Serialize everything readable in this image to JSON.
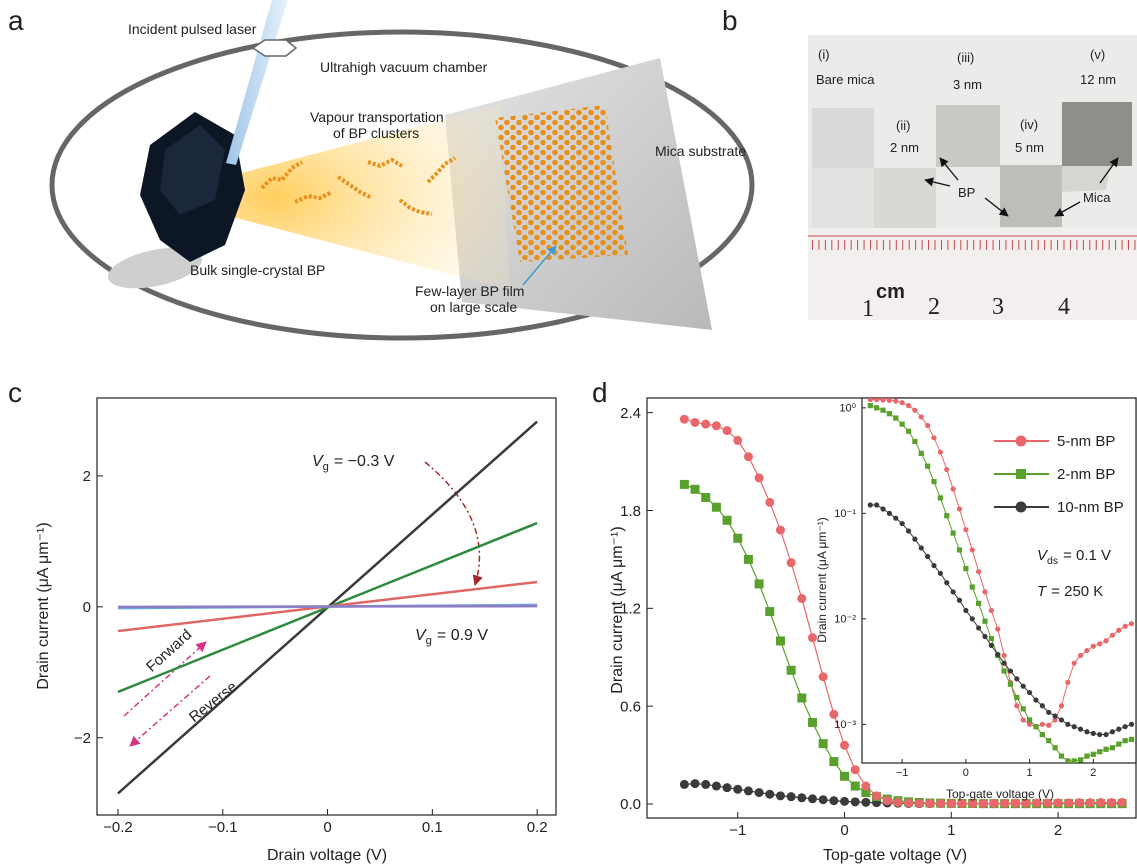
{
  "figure": {
    "panel_labels": [
      "a",
      "b",
      "c",
      "d"
    ],
    "diagram": {
      "laser": "Incident pulsed laser",
      "chamber": "Ultrahigh vacuum chamber",
      "vapour": [
        "Vapour transportation",
        "of BP clusters"
      ],
      "substrate": "Mica substrate",
      "bulk": "Bulk single-crystal BP",
      "film": [
        "Few-layer BP film",
        "on large scale"
      ]
    },
    "photo": {
      "samples": [
        {
          "index": "(i)",
          "label": "Bare mica"
        },
        {
          "index": "(ii)",
          "label": "2 nm"
        },
        {
          "index": "(iii)",
          "label": "3 nm"
        },
        {
          "index": "(iv)",
          "label": "5 nm"
        },
        {
          "index": "(v)",
          "label": "12 nm"
        }
      ],
      "bp": "BP",
      "mica": "Mica",
      "unit": "cm",
      "ruler_labels": [
        "1",
        "2",
        "3",
        "4"
      ]
    }
  },
  "chart_data": [
    {
      "type": "line",
      "x_label": "Drain voltage (V)",
      "y_label": "Drain current (μA μm⁻¹)",
      "x": [
        -0.2,
        0.2
      ],
      "series": [
        {
          "color": "#3a3a3a",
          "values": [
            -2.85,
            2.83
          ]
        },
        {
          "color": "#2e8b3e",
          "values": [
            -1.3,
            1.28
          ]
        },
        {
          "color": "#e06666",
          "values": [
            -0.37,
            0.38
          ]
        },
        {
          "color": "#6fa8dc",
          "values": [
            -0.02,
            0.03
          ]
        },
        {
          "color": "#8e7cc3",
          "values": [
            0,
            0.01
          ]
        }
      ],
      "xlim": [
        -0.22,
        0.218
      ],
      "ylim": [
        -3.18,
        3.19
      ],
      "xticks": [
        {
          "value": -0.2,
          "label": "−0.2"
        },
        {
          "value": -0.1,
          "label": "−0.1"
        },
        0,
        0.1,
        0.2
      ],
      "yticks": [
        {
          "value": -2,
          "label": "−2"
        },
        0,
        2
      ],
      "annotations": [
        {
          "symbol": "V",
          "subscript": "g",
          "text": "= −0.3 V"
        },
        {
          "symbol": "V",
          "subscript": "g",
          "text": "= 0.9 V"
        },
        {
          "text": "Forward"
        },
        {
          "text": "Reverse"
        }
      ]
    },
    {
      "type": "line",
      "x_label": "Top-gate voltage (V)",
      "y_label": "Drain current (μA μm⁻¹)",
      "x": [
        -1.5,
        -1.4,
        -1.3,
        -1.2,
        -1.1,
        -1.0,
        -0.9,
        -0.8,
        -0.7,
        -0.6,
        -0.5,
        -0.4,
        -0.3,
        -0.2,
        -0.1,
        0,
        0.1,
        0.2,
        0.3,
        0.4,
        0.5,
        0.6,
        0.7,
        0.8,
        0.9,
        1.0,
        1.1,
        1.2,
        1.3,
        1.4,
        1.5,
        1.6,
        1.7,
        1.8,
        1.9,
        2.0,
        2.1,
        2.2,
        2.3,
        2.4,
        2.5,
        2.6
      ],
      "series": [
        {
          "color": "#3a3a3a",
          "marker": "circle",
          "values": [
            0.12,
            0.125,
            0.12,
            0.11,
            0.1,
            0.09,
            0.08,
            0.07,
            0.06,
            0.05,
            0.045,
            0.038,
            0.032,
            0.026,
            0.02,
            0.016,
            0.013,
            0.01,
            0.008,
            0.006,
            0.005,
            0.003,
            0.002,
            0.002,
            0.002,
            0.002,
            0.002,
            0.002,
            0.002,
            0.002,
            0.002,
            0.002,
            0.002,
            0.002,
            0.002,
            0.002,
            0.002,
            0.002,
            0.002,
            0.002,
            0.002,
            0.002
          ]
        },
        {
          "color": "#5aa02c",
          "marker": "square",
          "values": [
            1.96,
            1.93,
            1.88,
            1.82,
            1.74,
            1.63,
            1.5,
            1.35,
            1.18,
            1.0,
            0.82,
            0.65,
            0.5,
            0.37,
            0.26,
            0.17,
            0.11,
            0.07,
            0.045,
            0.03,
            0.02,
            0.013,
            0.009,
            0.006,
            0.005,
            0.004,
            0.003,
            0.003,
            0.002,
            0.002,
            0.002,
            0.002,
            0.002,
            0.002,
            0.002,
            0.002,
            0.002,
            0.002,
            0.002,
            0.002,
            0.002,
            0.002
          ]
        },
        {
          "color": "#e8676a",
          "marker": "circle",
          "values": [
            2.36,
            2.34,
            2.33,
            2.32,
            2.29,
            2.23,
            2.13,
            2.0,
            1.85,
            1.68,
            1.48,
            1.26,
            1.02,
            0.78,
            0.55,
            0.36,
            0.21,
            0.11,
            0.05,
            0.02,
            0.01,
            0.006,
            0.004,
            0.003,
            0.003,
            0.003,
            0.003,
            0.003,
            0.003,
            0.004,
            0.004,
            0.005,
            0.005,
            0.006,
            0.006,
            0.007,
            0.007,
            0.008,
            0.008,
            0.009,
            0.009,
            0.01
          ]
        }
      ],
      "xlim": [
        -1.85,
        2.73
      ],
      "ylim": [
        -0.086,
        2.49
      ],
      "xticks": [
        {
          "value": -1,
          "label": "−1"
        },
        0,
        1,
        2
      ],
      "yticks": [
        {
          "value": 0,
          "label": "0.0"
        },
        0.6,
        1.2,
        1.8,
        2.4
      ]
    },
    {
      "type": "line",
      "x_label": "Top-gate voltage (V)",
      "y_label": "Drain current (μA μm⁻¹)",
      "log_y": true,
      "legend": "upper right",
      "x": [
        -1.5,
        -1.4,
        -1.3,
        -1.2,
        -1.1,
        -1.0,
        -0.9,
        -0.8,
        -0.7,
        -0.6,
        -0.5,
        -0.4,
        -0.3,
        -0.2,
        -0.1,
        0,
        0.1,
        0.2,
        0.3,
        0.4,
        0.5,
        0.6,
        0.7,
        0.8,
        0.9,
        1.0,
        1.1,
        1.2,
        1.3,
        1.4,
        1.5,
        1.6,
        1.7,
        1.8,
        1.9,
        2.0,
        2.1,
        2.2,
        2.3,
        2.4,
        2.5,
        2.6
      ],
      "series": [
        {
          "name": "5-nm BP",
          "color": "#e8676a",
          "marker": "circle",
          "values": [
            1.2,
            1.2,
            1.19,
            1.18,
            1.16,
            1.12,
            1.05,
            0.95,
            0.82,
            0.68,
            0.52,
            0.38,
            0.26,
            0.17,
            0.11,
            0.07,
            0.045,
            0.028,
            0.018,
            0.012,
            0.008,
            0.0045,
            0.0025,
            0.0015,
            0.0011,
            0.001,
            0.00095,
            0.001,
            0.00098,
            0.0011,
            0.0015,
            0.0025,
            0.0038,
            0.0045,
            0.005,
            0.0055,
            0.0058,
            0.0062,
            0.007,
            0.0078,
            0.0085,
            0.009
          ]
        },
        {
          "name": "2-nm BP",
          "color": "#5aa02c",
          "marker": "square",
          "values": [
            1.05,
            1.0,
            0.95,
            0.88,
            0.8,
            0.7,
            0.6,
            0.48,
            0.37,
            0.28,
            0.2,
            0.14,
            0.095,
            0.065,
            0.045,
            0.03,
            0.02,
            0.014,
            0.0095,
            0.0065,
            0.0045,
            0.0032,
            0.0024,
            0.0018,
            0.0014,
            0.0011,
            0.00095,
            0.0008,
            0.0007,
            0.0006,
            0.0005,
            0.00045,
            0.00045,
            0.00046,
            0.0005,
            0.00052,
            0.00055,
            0.00058,
            0.0006,
            0.00065,
            0.0007,
            0.00072
          ]
        },
        {
          "name": "10-nm BP",
          "color": "#3a3a3a",
          "marker": "circle",
          "values": [
            0.12,
            0.12,
            0.11,
            0.1,
            0.09,
            0.08,
            0.068,
            0.057,
            0.047,
            0.039,
            0.032,
            0.027,
            0.022,
            0.018,
            0.015,
            0.012,
            0.01,
            0.0082,
            0.0068,
            0.0056,
            0.0046,
            0.0038,
            0.0032,
            0.0027,
            0.0023,
            0.002,
            0.0017,
            0.0015,
            0.0013,
            0.0012,
            0.0011,
            0.001,
            0.00095,
            0.0009,
            0.00085,
            0.00082,
            0.0008,
            0.0008,
            0.00085,
            0.0009,
            0.00095,
            0.001
          ]
        }
      ],
      "xlim": [
        -1.63,
        2.67
      ],
      "ylim": [
        0.00043,
        1.24
      ],
      "xticks": [
        {
          "value": -1,
          "label": "−1"
        },
        0,
        1,
        2
      ],
      "yticks": [
        {
          "value": 0.001,
          "label": "10⁻³"
        },
        {
          "value": 0.01,
          "label": "10⁻²"
        },
        {
          "value": 0.1,
          "label": "10⁻¹"
        },
        {
          "value": 1,
          "label": "10⁰"
        }
      ],
      "annotations": [
        {
          "symbol": "V",
          "subscript": "ds",
          "text": "= 0.1 V"
        },
        {
          "symbol": "T",
          "text": "= 250 K"
        }
      ]
    }
  ]
}
